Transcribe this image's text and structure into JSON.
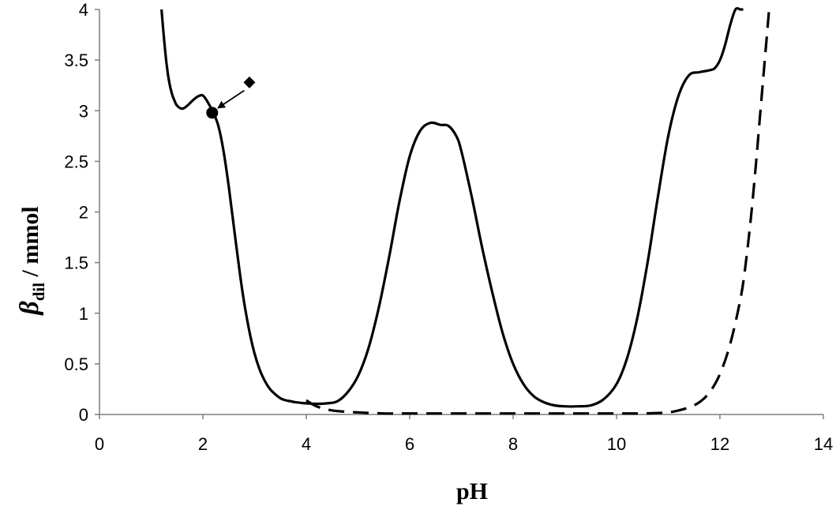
{
  "chart_data": {
    "type": "line",
    "title": "",
    "xlabel": "pH",
    "ylabel": {
      "symbol": "β",
      "subscript": "dil",
      "unit": " / mmol"
    },
    "xlim": [
      0,
      14
    ],
    "ylim": [
      0,
      4
    ],
    "xticks": [
      "0",
      "2",
      "4",
      "6",
      "8",
      "10",
      "12",
      "14"
    ],
    "yticks": [
      "0",
      "0.5",
      "1",
      "1.5",
      "2",
      "2.5",
      "3",
      "3.5",
      "4"
    ],
    "grid": false,
    "legend": false,
    "series": [
      {
        "style": "solid",
        "color": "#000000",
        "x": [
          1.2,
          1.25,
          1.3,
          1.35,
          1.4,
          1.45,
          1.5,
          1.6,
          1.7,
          1.8,
          1.9,
          2.0,
          2.1,
          2.2,
          2.3,
          2.4,
          2.5,
          2.6,
          2.7,
          2.8,
          2.9,
          3.0,
          3.1,
          3.2,
          3.3,
          3.4,
          3.5,
          3.6,
          3.7,
          3.8,
          3.9,
          4.0,
          4.2,
          4.4,
          4.6,
          4.8,
          5.0,
          5.2,
          5.4,
          5.6,
          5.8,
          6.0,
          6.2,
          6.4,
          6.6,
          6.75,
          6.9,
          7.0,
          7.2,
          7.4,
          7.6,
          7.8,
          8.0,
          8.2,
          8.4,
          8.6,
          8.8,
          9.0,
          9.25,
          9.5,
          9.75,
          10.0,
          10.2,
          10.4,
          10.6,
          10.8,
          11.0,
          11.2,
          11.4,
          11.6,
          11.8,
          11.9,
          12.0,
          12.1,
          12.2,
          12.3,
          12.4,
          12.45
        ],
        "y": [
          4.0,
          3.7,
          3.45,
          3.28,
          3.17,
          3.1,
          3.05,
          3.02,
          3.05,
          3.1,
          3.14,
          3.15,
          3.08,
          2.98,
          2.85,
          2.6,
          2.25,
          1.85,
          1.45,
          1.1,
          0.82,
          0.6,
          0.44,
          0.33,
          0.25,
          0.2,
          0.16,
          0.14,
          0.13,
          0.12,
          0.115,
          0.11,
          0.105,
          0.11,
          0.13,
          0.22,
          0.38,
          0.65,
          1.05,
          1.55,
          2.1,
          2.55,
          2.8,
          2.88,
          2.86,
          2.85,
          2.75,
          2.6,
          2.15,
          1.65,
          1.2,
          0.8,
          0.5,
          0.3,
          0.18,
          0.12,
          0.09,
          0.08,
          0.08,
          0.09,
          0.15,
          0.3,
          0.55,
          0.95,
          1.5,
          2.15,
          2.75,
          3.15,
          3.35,
          3.38,
          3.4,
          3.42,
          3.5,
          3.65,
          3.85,
          4.0,
          4.0,
          4.0
        ]
      },
      {
        "style": "dashed",
        "color": "#000000",
        "x": [
          4.0,
          4.2,
          4.5,
          5.0,
          5.5,
          6.0,
          7.0,
          8.0,
          9.0,
          10.0,
          10.5,
          10.8,
          11.0,
          11.2,
          11.4,
          11.6,
          11.8,
          12.0,
          12.2,
          12.4,
          12.5,
          12.6,
          12.7,
          12.8,
          12.9,
          12.95
        ],
        "y": [
          0.14,
          0.08,
          0.04,
          0.02,
          0.01,
          0.01,
          0.01,
          0.01,
          0.01,
          0.01,
          0.01,
          0.015,
          0.02,
          0.04,
          0.07,
          0.12,
          0.22,
          0.4,
          0.7,
          1.15,
          1.5,
          1.95,
          2.5,
          3.1,
          3.7,
          4.0
        ]
      }
    ],
    "markers": [
      {
        "shape": "circle",
        "x": 2.18,
        "y": 2.98
      },
      {
        "shape": "diamond",
        "x": 2.9,
        "y": 3.28
      }
    ],
    "arrow": {
      "from": [
        2.8,
        3.2
      ],
      "to": [
        2.3,
        3.03
      ]
    }
  }
}
